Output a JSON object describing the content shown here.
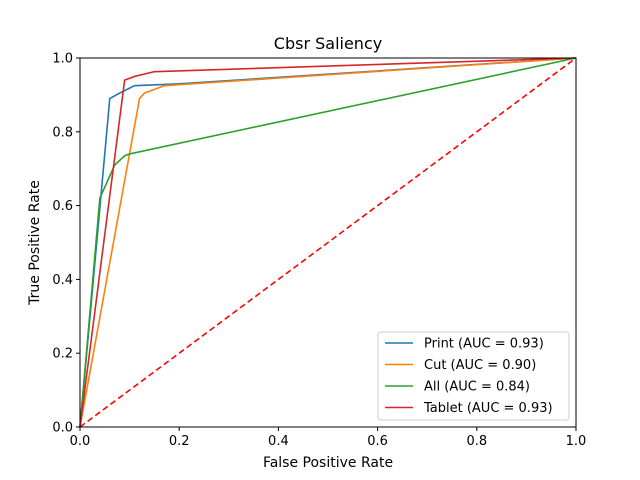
{
  "chart_data": {
    "type": "line",
    "title": "Cbsr Saliency",
    "xlabel": "False Positive Rate",
    "ylabel": "True Positive Rate",
    "xlim": [
      0,
      1
    ],
    "ylim": [
      0,
      1
    ],
    "xticks": [
      "0.0",
      "0.2",
      "0.4",
      "0.6",
      "0.8",
      "1.0"
    ],
    "yticks": [
      "0.0",
      "0.2",
      "0.4",
      "0.6",
      "0.8",
      "1.0"
    ],
    "grid": false,
    "legend_position": "lower-right",
    "series": [
      {
        "name": "Print (AUC = 0.93)",
        "color": "#1f77b4",
        "x": [
          0,
          0.06,
          0.08,
          0.11,
          0.2,
          1.0
        ],
        "y": [
          0,
          0.89,
          0.905,
          0.925,
          0.93,
          1.0
        ]
      },
      {
        "name": "Cut (AUC = 0.90)",
        "color": "#ff7f0e",
        "x": [
          0,
          0.12,
          0.13,
          0.15,
          0.17,
          1.0
        ],
        "y": [
          0,
          0.89,
          0.905,
          0.915,
          0.925,
          1.0
        ]
      },
      {
        "name": "All (AUC = 0.84)",
        "color": "#2ca02c",
        "x": [
          0,
          0.04,
          0.07,
          0.09,
          0.1,
          1.0
        ],
        "y": [
          0,
          0.62,
          0.71,
          0.735,
          0.74,
          1.0
        ]
      },
      {
        "name": "Tablet (AUC = 0.93)",
        "color": "#d62728",
        "x": [
          0,
          0.09,
          0.11,
          0.15,
          1.0
        ],
        "y": [
          0,
          0.94,
          0.95,
          0.963,
          1.0
        ]
      }
    ],
    "reference_line": {
      "x": [
        0,
        1
      ],
      "y": [
        0,
        1
      ],
      "color": "#ff0000",
      "style": "dashed"
    }
  }
}
